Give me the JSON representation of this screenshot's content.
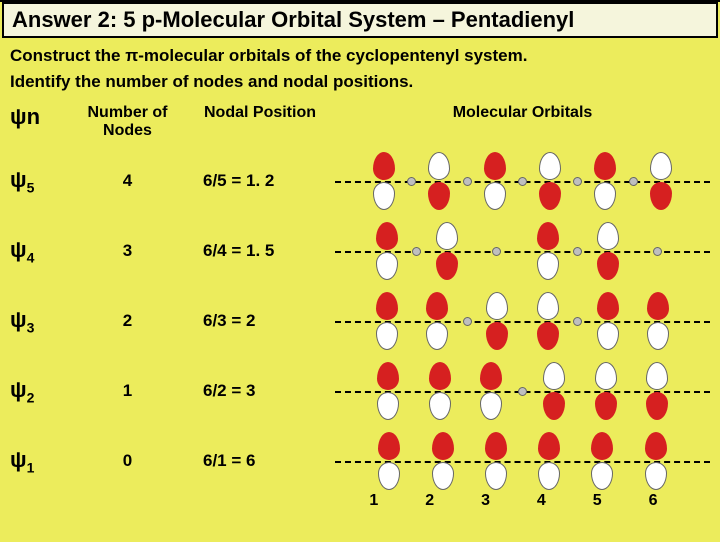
{
  "title": "Answer 2: 5 p-Molecular Orbital System – Pentadienyl",
  "instruction1": "Construct the π-molecular orbitals of the cyclopentenyl system.",
  "instruction2": "Identify the number of nodes and nodal positions.",
  "headers": {
    "psi": "ψn",
    "nodes": "Number of Nodes",
    "nodal": "Nodal Position",
    "mo": "Molecular Orbitals"
  },
  "rows": [
    {
      "psi": "ψ",
      "sub": "5",
      "nodes": "4",
      "nodal": "6/5 = 1. 2",
      "phases": [
        "up",
        "down",
        "up",
        "down",
        "up",
        "down"
      ],
      "internodes": [
        true,
        true,
        true,
        true,
        true
      ]
    },
    {
      "psi": "ψ",
      "sub": "4",
      "nodes": "3",
      "nodal": "6/4 = 1. 5",
      "phases": [
        "up",
        "down",
        "node",
        "up",
        "down",
        "node"
      ],
      "internodes": [
        true,
        false,
        false,
        true,
        false
      ]
    },
    {
      "psi": "ψ",
      "sub": "3",
      "nodes": "2",
      "nodal": "6/3 = 2",
      "phases": [
        "up",
        "up",
        "down",
        "down",
        "up",
        "up"
      ],
      "internodes": [
        false,
        true,
        false,
        true,
        false
      ]
    },
    {
      "psi": "ψ",
      "sub": "2",
      "nodes": "1",
      "nodal": "6/2 = 3",
      "phases": [
        "up",
        "up",
        "up",
        "down",
        "down",
        "down"
      ],
      "internodes": [
        false,
        false,
        true,
        false,
        false
      ]
    },
    {
      "psi": "ψ",
      "sub": "1",
      "nodes": "0",
      "nodal": "6/1 = 6",
      "phases": [
        "up",
        "up",
        "up",
        "up",
        "up",
        "up"
      ],
      "internodes": [
        false,
        false,
        false,
        false,
        false
      ]
    }
  ],
  "positions": [
    "1",
    "2",
    "3",
    "4",
    "5",
    "6"
  ],
  "colors": {
    "red": "#d62020",
    "white": "#ffffff",
    "bg": "#ecec5c",
    "titlebg": "#f5f5dc"
  }
}
